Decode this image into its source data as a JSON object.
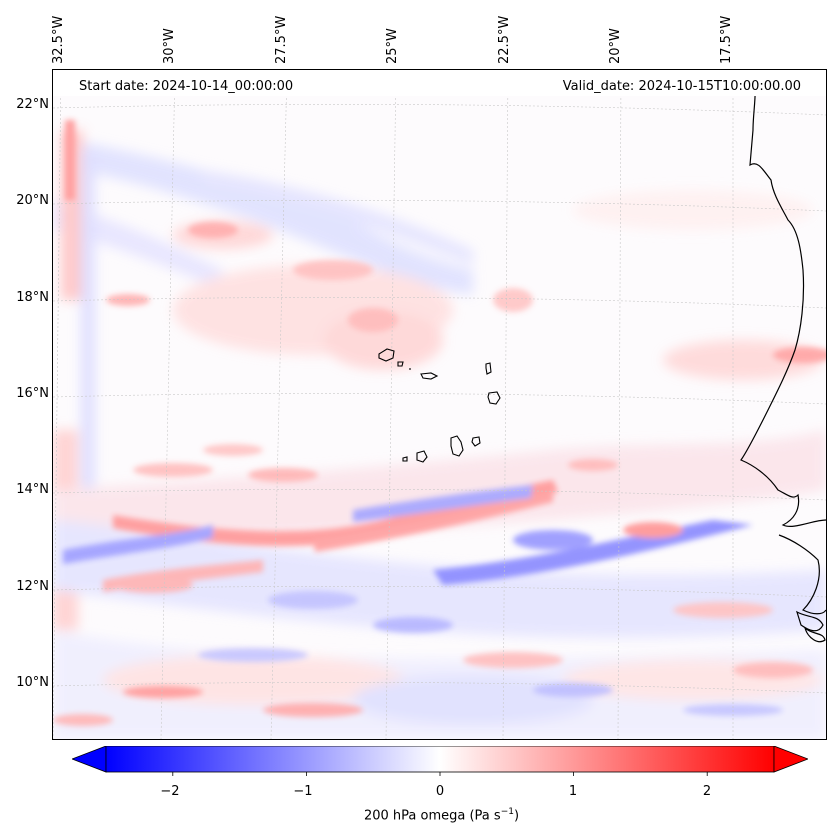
{
  "map": {
    "start_date": "Start date: 2024-10-14_00:00:00",
    "valid_date": "Valid_date: 2024-10-15T10:00:00.00",
    "lon_labels": [
      "32.5°W",
      "30°W",
      "27.5°W",
      "25°W",
      "22.5°W",
      "20°W",
      "17.5°W"
    ],
    "lat_labels": [
      "22°N",
      "20°N",
      "18°N",
      "16°N",
      "14°N",
      "12°N",
      "10°N"
    ],
    "variable": "200 hPa omega",
    "units": "Pa s",
    "units_exponent": "−1"
  },
  "colorbar": {
    "ticks": [
      "−2",
      "−1",
      "0",
      "1",
      "2"
    ],
    "tick_values": [
      -2,
      -1,
      0,
      1,
      2
    ],
    "range": [
      -2.5,
      2.5
    ],
    "low_color": "#0000ff",
    "mid_color": "#ffffff",
    "high_color": "#ff0000",
    "extend": "both"
  }
}
